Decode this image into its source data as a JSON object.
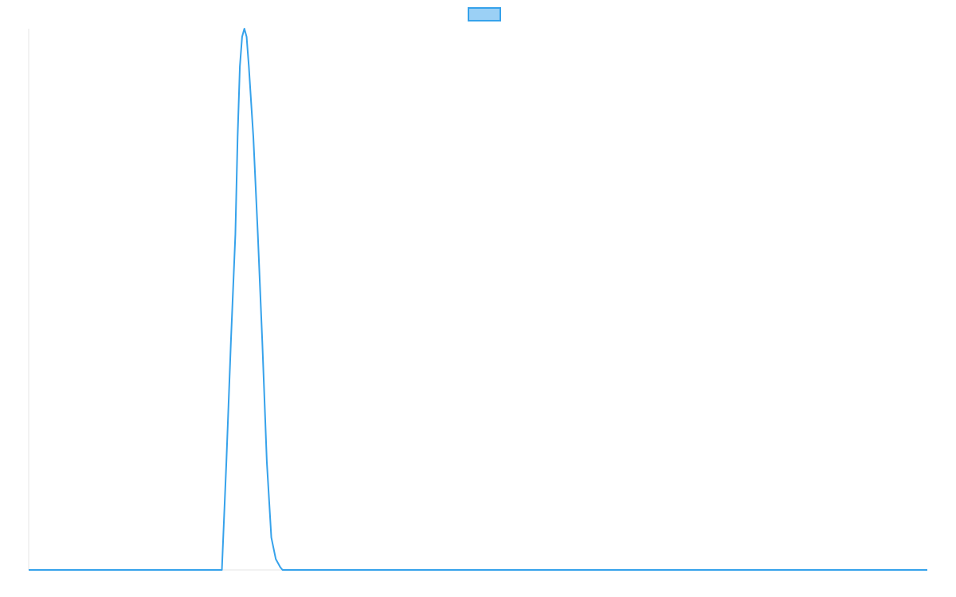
{
  "chart_data": {
    "type": "line",
    "title": "",
    "xlabel": "",
    "ylabel": "",
    "grid": false,
    "legend": {
      "placement": "top-center",
      "entries": [
        {
          "label": "",
          "fill_color": "#9bd0f5",
          "stroke_color": "#36a2eb"
        }
      ]
    },
    "xlim": [
      0,
      100
    ],
    "ylim": [
      0,
      1
    ],
    "series": [
      {
        "color": "#36a2eb",
        "x": [
          0,
          21.5,
          22.0,
          22.5,
          23.0,
          23.25,
          23.5,
          23.75,
          24.0,
          24.25,
          24.5,
          25.0,
          25.5,
          26.0,
          26.5,
          27.0,
          27.5,
          28.0,
          28.25,
          28.5,
          100
        ],
        "values": [
          0,
          0,
          0.2,
          0.42,
          0.62,
          0.8,
          0.93,
          0.985,
          1.0,
          0.985,
          0.93,
          0.8,
          0.62,
          0.42,
          0.2,
          0.06,
          0.02,
          0.005,
          0,
          0,
          0
        ]
      }
    ]
  }
}
